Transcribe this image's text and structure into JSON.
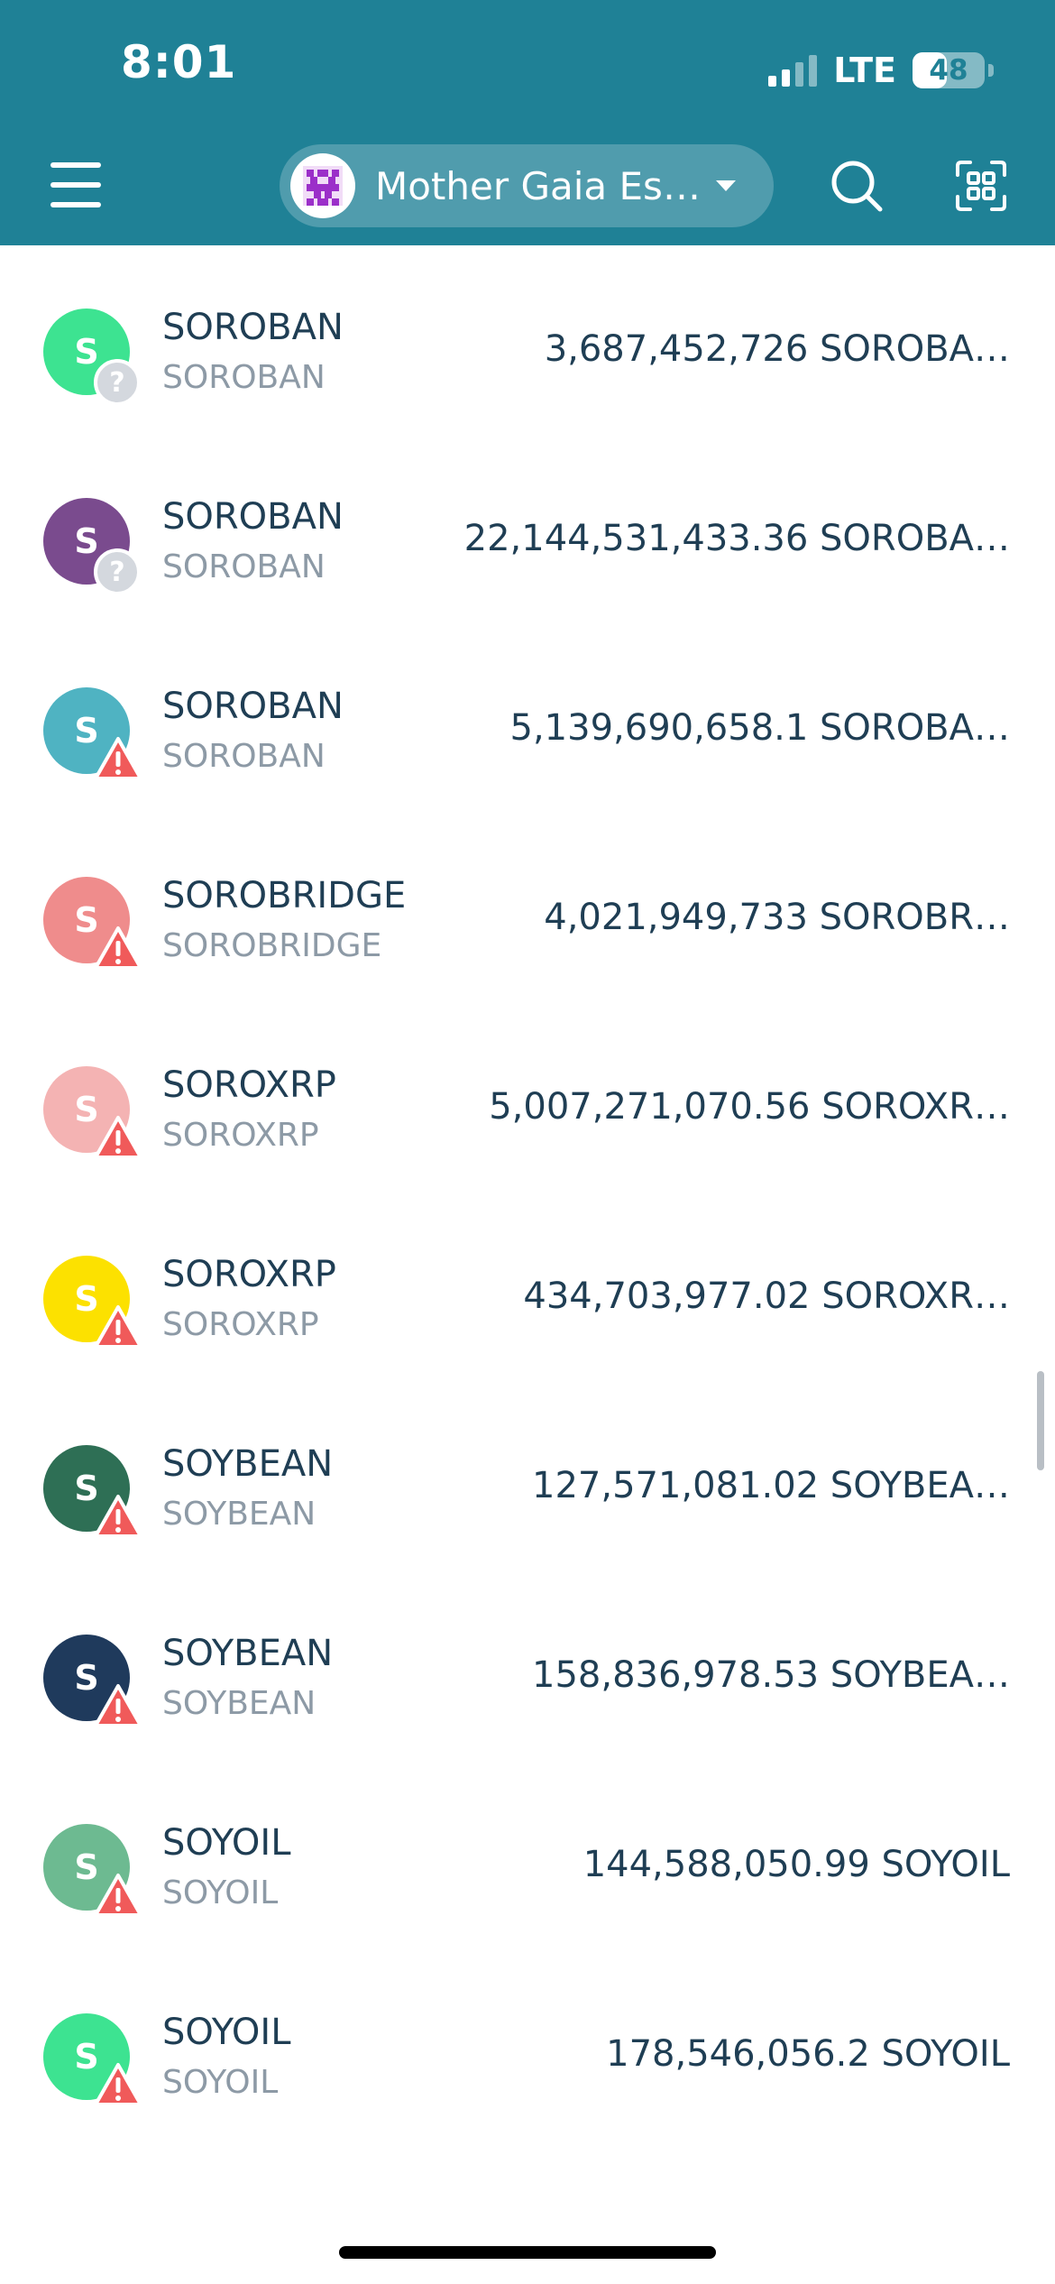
{
  "status_bar": {
    "time": "8:01",
    "network": "LTE",
    "battery": "48",
    "battery_level": 0.48
  },
  "header": {
    "account_name": "Mother Gaia Es…",
    "menu_icon": "hamburger-menu-icon",
    "search_icon": "search-icon",
    "scan_icon": "qr-scan-icon",
    "background_color": "#1f8196"
  },
  "assets": [
    {
      "icon_letter": "S",
      "icon_color": "#3de391",
      "code": "SOROBAN",
      "issuer": "SOROBAN",
      "balance": "3,687,452,726 SOROBA…",
      "badge": "unknown"
    },
    {
      "icon_letter": "S",
      "icon_color": "#7a4b8e",
      "code": "SOROBAN",
      "issuer": "SOROBAN",
      "balance": "22,144,531,433.36 SOROBA…",
      "badge": "unknown"
    },
    {
      "icon_letter": "S",
      "icon_color": "#4fb3c2",
      "code": "SOROBAN",
      "issuer": "SOROBAN",
      "balance": "5,139,690,658.1 SOROBA…",
      "badge": "warning"
    },
    {
      "icon_letter": "S",
      "icon_color": "#ef8c8c",
      "code": "SOROBRIDGE",
      "issuer": "SOROBRIDGE",
      "balance": "4,021,949,733 SOROBR…",
      "badge": "warning"
    },
    {
      "icon_letter": "S",
      "icon_color": "#f4b3b3",
      "code": "SOROXRP",
      "issuer": "SOROXRP",
      "balance": "5,007,271,070.56 SOROXR…",
      "badge": "warning"
    },
    {
      "icon_letter": "S",
      "icon_color": "#fce100",
      "code": "SOROXRP",
      "issuer": "SOROXRP",
      "balance": "434,703,977.02 SOROXR…",
      "badge": "warning"
    },
    {
      "icon_letter": "S",
      "icon_color": "#2e6f55",
      "code": "SOYBEAN",
      "issuer": "SOYBEAN",
      "balance": "127,571,081.02 SOYBEA…",
      "badge": "warning"
    },
    {
      "icon_letter": "S",
      "icon_color": "#1f3a5c",
      "code": "SOYBEAN",
      "issuer": "SOYBEAN",
      "balance": "158,836,978.53 SOYBEA…",
      "badge": "warning"
    },
    {
      "icon_letter": "S",
      "icon_color": "#6dba91",
      "code": "SOYOIL",
      "issuer": "SOYOIL",
      "balance": "144,588,050.99 SOYOIL",
      "badge": "warning"
    },
    {
      "icon_letter": "S",
      "icon_color": "#3de391",
      "code": "SOYOIL",
      "issuer": "SOYOIL",
      "balance": "178,546,056.2 SOYOIL",
      "badge": "warning"
    }
  ],
  "colors": {
    "warning": "#f05a5a",
    "unknown_badge": "#d4d8de",
    "primary_text": "#1f3e54",
    "secondary_text": "#8d9aa6"
  }
}
